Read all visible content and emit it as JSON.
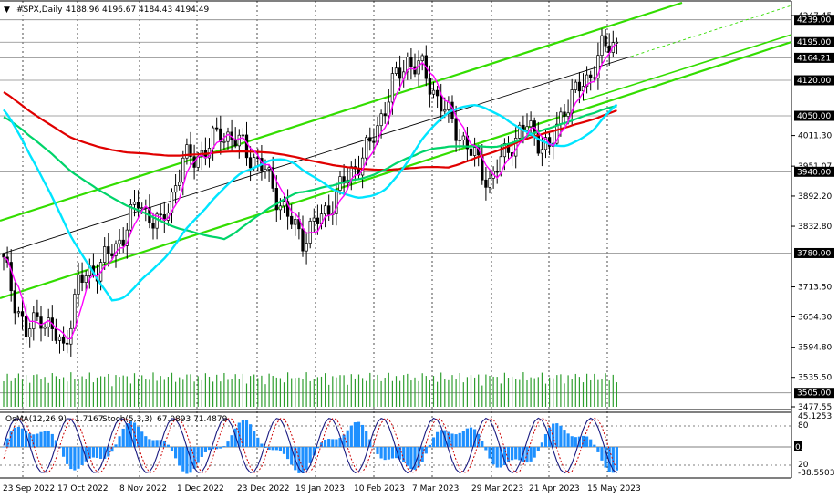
{
  "header": {
    "symbol_text": "#SPX,Daily",
    "open": "4188.96",
    "high": "4196.67",
    "low": "4184.43",
    "close": "4194.49"
  },
  "indicator_header": {
    "osma_text": "OsMA(12,26,9)",
    "osma_value": "1.7167",
    "stoch_text": "Stoch(5,3,3)",
    "stoch_values": "67.0893 71.4879"
  },
  "colors": {
    "background": "#ffffff",
    "candle": "#000000",
    "ma_fast": "#ff00ff",
    "ma_cyan": "#00e5ff",
    "ma_green": "#00d46a",
    "ma_red": "#e00000",
    "channel": "#33dd00",
    "trendline": "#000000",
    "volume": "#2e9e2e",
    "osma": "#1e90ff",
    "stoch_main": "#1a1a80",
    "stoch_signal": "#cc0000"
  },
  "price_axis_ticks": [
    "4247.45",
    "4195.00",
    "4164.21",
    "4120.00",
    "4050.00",
    "4011.30",
    "3951.07",
    "3940.00",
    "3892.20",
    "3832.80",
    "3780.00",
    "3713.50",
    "3654.30",
    "3594.80",
    "3535.50",
    "3505.00",
    "3477.55"
  ],
  "level_labels": [
    {
      "value": "4239.00",
      "price": 4239
    },
    {
      "value": "4195.00",
      "price": 4195
    },
    {
      "value": "4164.21",
      "price": 4164.21
    },
    {
      "value": "4120.00",
      "price": 4120
    },
    {
      "value": "4050.00",
      "price": 4050
    },
    {
      "value": "3940.00",
      "price": 3940
    },
    {
      "value": "3780.00",
      "price": 3780
    },
    {
      "value": "3505.00",
      "price": 3505
    }
  ],
  "plain_ticks": [
    {
      "value": "4247.45",
      "price": 4247.45
    },
    {
      "value": "4011.30",
      "price": 4011.3
    },
    {
      "value": "3951.07",
      "price": 3951.07
    },
    {
      "value": "3892.20",
      "price": 3892.2
    },
    {
      "value": "3832.80",
      "price": 3832.8
    },
    {
      "value": "3713.50",
      "price": 3713.5
    },
    {
      "value": "3654.30",
      "price": 3654.3
    },
    {
      "value": "3594.80",
      "price": 3594.8
    },
    {
      "value": "3535.50",
      "price": 3535.5
    },
    {
      "value": "3477.55",
      "price": 3477.55
    }
  ],
  "osc_axis_ticks": [
    {
      "value": "45.1253",
      "v": 45.1253
    },
    {
      "value": "80",
      "v": 80
    },
    {
      "value": "20",
      "v": 20
    },
    {
      "value": "-38.5503",
      "v": -38.5503
    }
  ],
  "osc_zero_label": "0.00",
  "date_labels": [
    "23 Sep 2022",
    "17 Oct 2022",
    "8 Nov 2022",
    "1 Dec 2022",
    "23 Dec 2022",
    "19 Jan 2023",
    "10 Feb 2023",
    "7 Mar 2023",
    "29 Mar 2023",
    "21 Apr 2023",
    "15 May 2023"
  ],
  "chart_data": {
    "type": "line",
    "title": "#SPX,Daily",
    "x": [
      "23 Sep 2022",
      "17 Oct 2022",
      "8 Nov 2022",
      "1 Dec 2022",
      "23 Dec 2022",
      "19 Jan 2023",
      "10 Feb 2023",
      "7 Mar 2023",
      "29 Mar 2023",
      "21 Apr 2023",
      "15 May 2023"
    ],
    "ylim": [
      3477.55,
      4247.45
    ],
    "series": [
      {
        "values": [
          3720,
          3690,
          3820,
          3830,
          3780,
          3990,
          3990,
          3990,
          4030,
          4135,
          4195
        ]
      },
      {
        "values": [
          3810,
          3760,
          3780,
          3960,
          3860,
          3880,
          4010,
          3970,
          3990,
          4090,
          4120
        ]
      },
      {
        "values": [
          4080,
          3970,
          3940,
          3960,
          3930,
          3950,
          4000,
          4000,
          3990,
          4080,
          4110
        ]
      },
      {
        "values": [
          4170,
          4120,
          4060,
          4030,
          4020,
          4000,
          4005,
          4010,
          4040,
          4050,
          4060
        ]
      }
    ],
    "levels": [
      4239.0,
      4195.0,
      4164.21,
      4120.0,
      4050.0,
      3940.0,
      3780.0,
      3505.0
    ],
    "grid": true,
    "legend": "none"
  }
}
